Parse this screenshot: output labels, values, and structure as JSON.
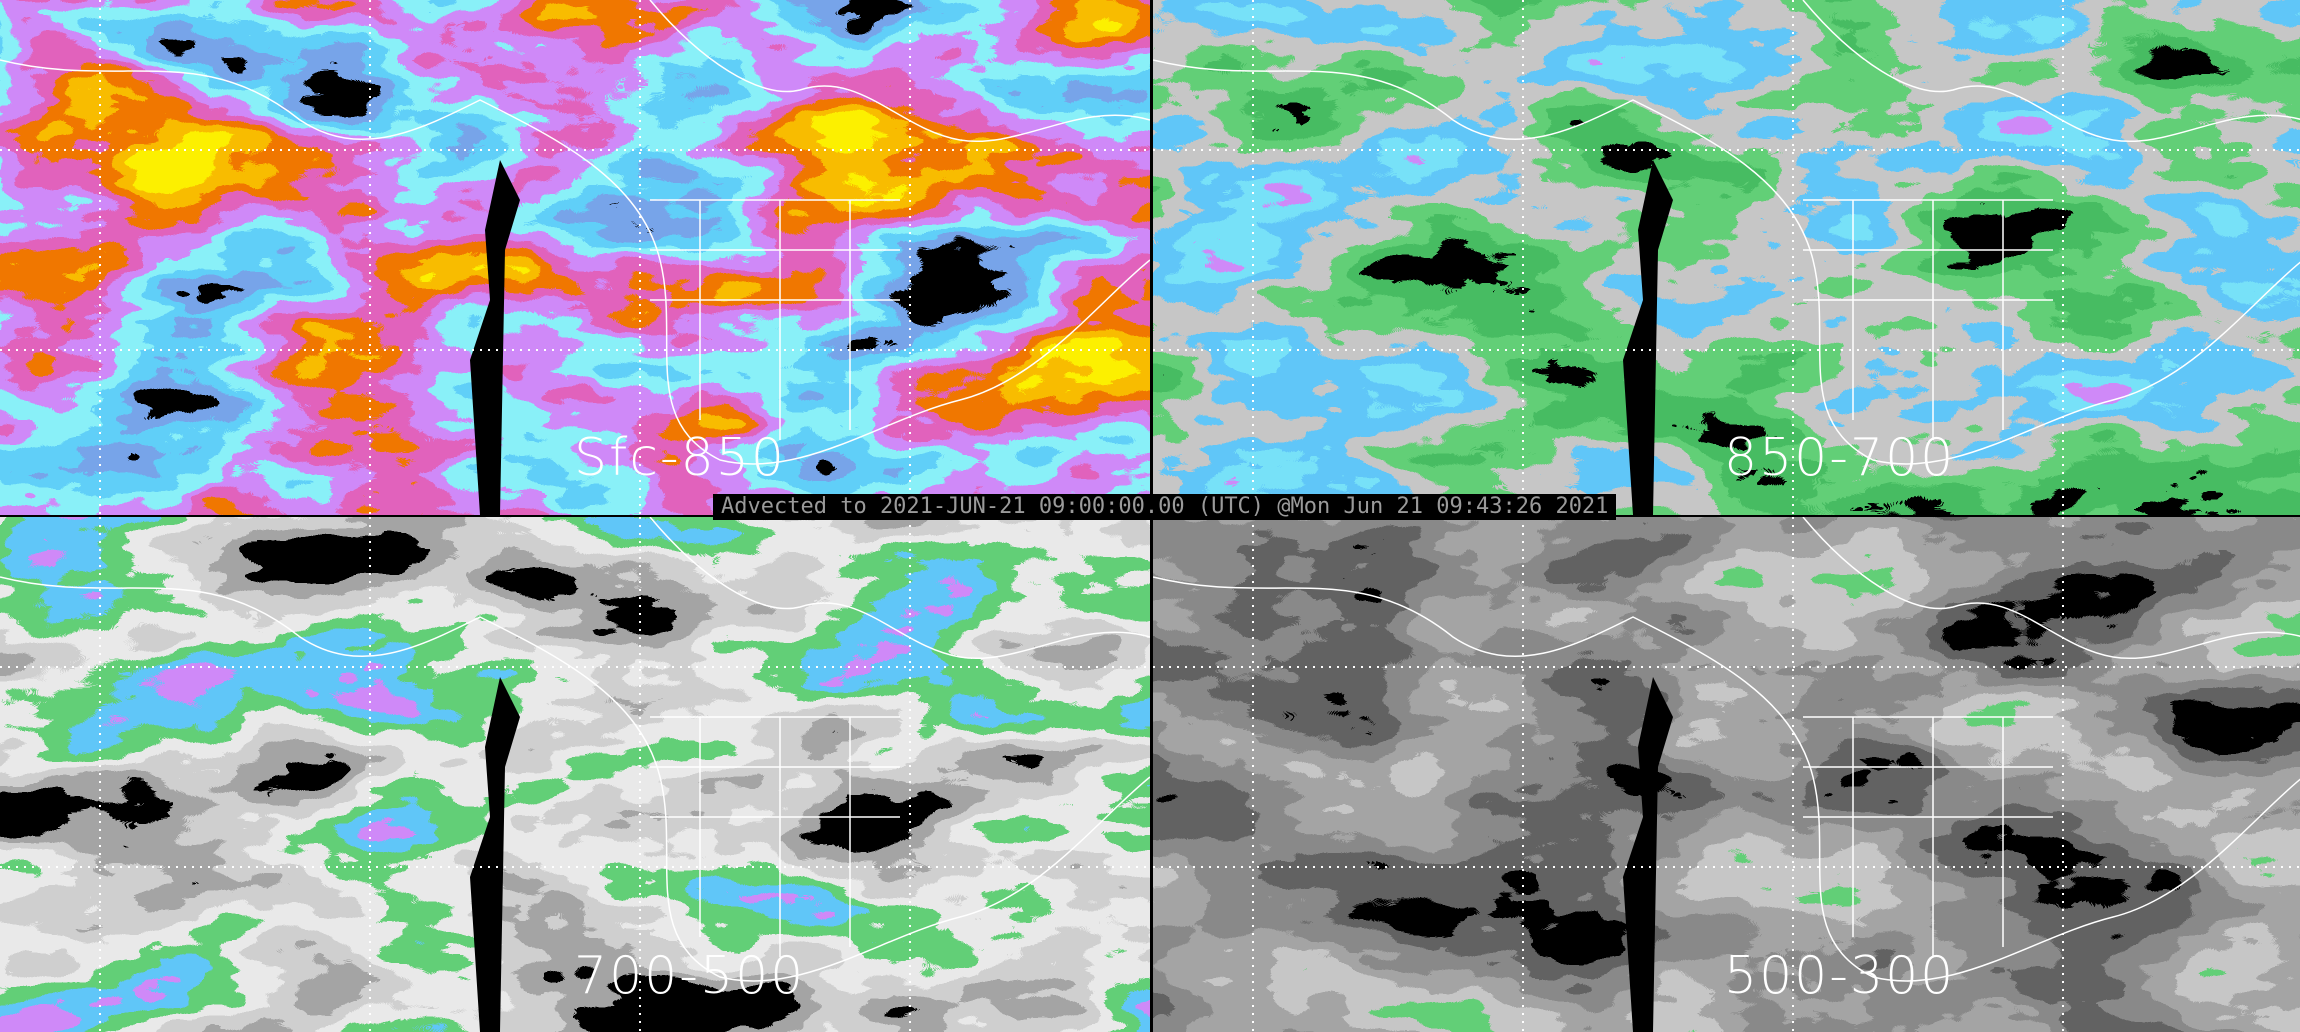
{
  "panels": [
    {
      "label": "Sfc-850",
      "palette": [
        "#000000",
        "#3060d0",
        "#1ea0f0",
        "#40e0f0",
        "#a040f0",
        "#c02080",
        "#e03000",
        "#f08000",
        "#f8e000"
      ]
    },
    {
      "label": "850-700",
      "palette": [
        "#000000",
        "#108020",
        "#20a030",
        "#909090",
        "#1e90f0",
        "#30c0f0",
        "#a040f0"
      ]
    },
    {
      "label": "700-500",
      "palette": [
        "#000000",
        "#606060",
        "#a0a0a0",
        "#d0d0d0",
        "#20a030",
        "#1e90f0",
        "#a040f0"
      ]
    },
    {
      "label": "500-300",
      "palette": [
        "#000000",
        "#202020",
        "#404040",
        "#606060",
        "#909090",
        "#20a030"
      ]
    }
  ],
  "timestamp": "Advected to 2021-JUN-21 09:00:00.00 (UTC) @Mon Jun 21 09:43:26 2021",
  "colors": {
    "background": "#000000",
    "label": "#ffffff",
    "timestamp_text": "#9a9a9a",
    "grid": "#ffffff"
  }
}
